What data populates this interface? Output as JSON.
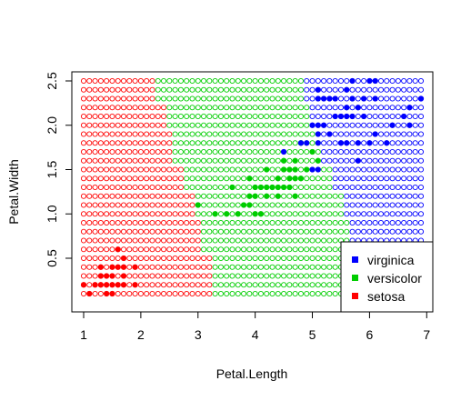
{
  "chart_data": {
    "type": "scatter",
    "title": "",
    "xlabel": "Petal.Length",
    "ylabel": "Petal.Width",
    "xlim": [
      0.9,
      7.0
    ],
    "ylim": [
      0.1,
      2.55
    ],
    "x_ticks": [
      1,
      2,
      3,
      4,
      5,
      6,
      7
    ],
    "x_tick_labels": [
      "1",
      "2",
      "3",
      "4",
      "5",
      "6",
      "7"
    ],
    "y_ticks": [
      0.5,
      1.0,
      1.5,
      2.0,
      2.5
    ],
    "y_tick_labels": [
      "0.5",
      "1.0",
      "1.5",
      "2.0",
      "2.5"
    ],
    "grid": false,
    "legend_position": "bottom-right",
    "legend": [
      {
        "label": "virginica",
        "color": "#0000FF"
      },
      {
        "label": "versicolor",
        "color": "#00CD00"
      },
      {
        "label": "setosa",
        "color": "#FF0000"
      }
    ],
    "background_grid": {
      "description_of_regions": "predicted class per grid point, shown as open circles",
      "x_start": 1.0,
      "x_end": 6.9,
      "x_step": 0.1,
      "y_start": 0.1,
      "y_end": 2.5,
      "y_step": 0.1,
      "boundaries": [
        {
          "y_max": 0.55,
          "setosa_max_x": 3.25,
          "versicolor_max_x": 5.65
        },
        {
          "y_max": 0.95,
          "setosa_max_x": 3.0,
          "versicolor_max_x": 5.65
        },
        {
          "y_max": 1.25,
          "setosa_max_x": 2.9,
          "versicolor_max_x": 5.5
        },
        {
          "y_max": 1.55,
          "setosa_max_x": 2.75,
          "versicolor_max_x": 5.3
        },
        {
          "y_max": 1.95,
          "setosa_max_x": 2.55,
          "versicolor_max_x": 5.1
        },
        {
          "y_max": 2.25,
          "setosa_max_x": 2.45,
          "versicolor_max_x": 4.95
        },
        {
          "y_max": 2.6,
          "setosa_max_x": 2.25,
          "versicolor_max_x": 4.85
        }
      ]
    },
    "series": [
      {
        "name": "setosa",
        "color": "#FF0000",
        "points": [
          [
            1.0,
            0.2
          ],
          [
            1.1,
            0.1
          ],
          [
            1.2,
            0.2
          ],
          [
            1.3,
            0.2
          ],
          [
            1.3,
            0.3
          ],
          [
            1.3,
            0.4
          ],
          [
            1.4,
            0.1
          ],
          [
            1.4,
            0.2
          ],
          [
            1.4,
            0.3
          ],
          [
            1.5,
            0.1
          ],
          [
            1.5,
            0.2
          ],
          [
            1.5,
            0.3
          ],
          [
            1.5,
            0.4
          ],
          [
            1.6,
            0.2
          ],
          [
            1.6,
            0.4
          ],
          [
            1.6,
            0.6
          ],
          [
            1.7,
            0.2
          ],
          [
            1.7,
            0.3
          ],
          [
            1.7,
            0.4
          ],
          [
            1.7,
            0.5
          ],
          [
            1.9,
            0.2
          ],
          [
            1.9,
            0.4
          ]
        ]
      },
      {
        "name": "versicolor",
        "color": "#00CD00",
        "points": [
          [
            3.0,
            1.1
          ],
          [
            3.3,
            1.0
          ],
          [
            3.5,
            1.0
          ],
          [
            3.6,
            1.3
          ],
          [
            3.7,
            1.0
          ],
          [
            3.8,
            1.1
          ],
          [
            3.9,
            1.1
          ],
          [
            3.9,
            1.2
          ],
          [
            3.9,
            1.4
          ],
          [
            4.0,
            1.0
          ],
          [
            4.0,
            1.2
          ],
          [
            4.0,
            1.3
          ],
          [
            4.1,
            1.0
          ],
          [
            4.1,
            1.3
          ],
          [
            4.2,
            1.2
          ],
          [
            4.2,
            1.3
          ],
          [
            4.2,
            1.5
          ],
          [
            4.3,
            1.3
          ],
          [
            4.4,
            1.2
          ],
          [
            4.4,
            1.3
          ],
          [
            4.4,
            1.4
          ],
          [
            4.5,
            1.3
          ],
          [
            4.5,
            1.5
          ],
          [
            4.5,
            1.6
          ],
          [
            4.6,
            1.3
          ],
          [
            4.6,
            1.4
          ],
          [
            4.6,
            1.5
          ],
          [
            4.7,
            1.2
          ],
          [
            4.7,
            1.4
          ],
          [
            4.7,
            1.5
          ],
          [
            4.7,
            1.6
          ],
          [
            4.8,
            1.4
          ],
          [
            4.8,
            1.8
          ],
          [
            4.9,
            1.5
          ],
          [
            5.0,
            1.7
          ],
          [
            5.1,
            1.6
          ]
        ]
      },
      {
        "name": "virginica",
        "color": "#0000FF",
        "points": [
          [
            4.5,
            1.7
          ],
          [
            4.8,
            1.8
          ],
          [
            4.9,
            1.8
          ],
          [
            5.0,
            1.5
          ],
          [
            5.0,
            2.0
          ],
          [
            5.1,
            1.5
          ],
          [
            5.1,
            1.8
          ],
          [
            5.1,
            1.9
          ],
          [
            5.1,
            2.0
          ],
          [
            5.1,
            2.3
          ],
          [
            5.1,
            2.4
          ],
          [
            5.2,
            2.0
          ],
          [
            5.2,
            2.3
          ],
          [
            5.3,
            1.9
          ],
          [
            5.3,
            2.3
          ],
          [
            5.4,
            2.1
          ],
          [
            5.4,
            2.3
          ],
          [
            5.5,
            1.8
          ],
          [
            5.5,
            2.1
          ],
          [
            5.6,
            1.8
          ],
          [
            5.6,
            2.1
          ],
          [
            5.6,
            2.2
          ],
          [
            5.6,
            2.4
          ],
          [
            5.7,
            2.1
          ],
          [
            5.7,
            2.3
          ],
          [
            5.7,
            2.5
          ],
          [
            5.8,
            1.6
          ],
          [
            5.8,
            1.8
          ],
          [
            5.8,
            2.2
          ],
          [
            5.9,
            2.1
          ],
          [
            5.9,
            2.3
          ],
          [
            6.0,
            1.8
          ],
          [
            6.0,
            2.5
          ],
          [
            6.1,
            1.9
          ],
          [
            6.1,
            2.3
          ],
          [
            6.1,
            2.5
          ],
          [
            6.3,
            1.8
          ],
          [
            6.4,
            2.0
          ],
          [
            6.6,
            2.1
          ],
          [
            6.7,
            2.0
          ],
          [
            6.7,
            2.2
          ],
          [
            6.9,
            2.3
          ]
        ]
      }
    ]
  }
}
